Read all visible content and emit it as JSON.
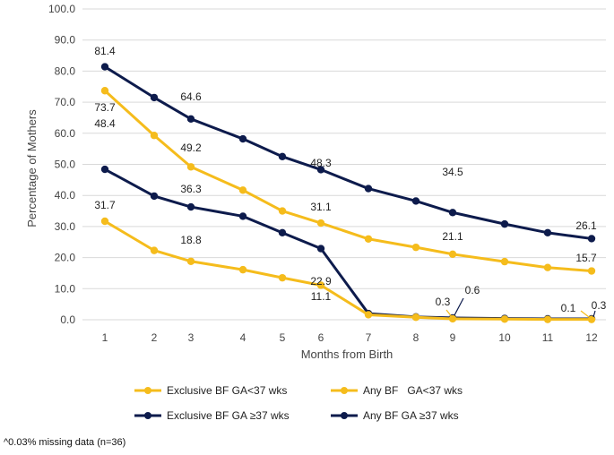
{
  "chart_data": {
    "type": "line",
    "title": "",
    "xlabel": "Months from Birth",
    "ylabel": "Percentage of Mothers",
    "ylim": [
      0,
      100
    ],
    "yticks": [
      "0.0",
      "10.0",
      "20.0",
      "30.0",
      "40.0",
      "50.0",
      "60.0",
      "70.0",
      "80.0",
      "90.0",
      "100.0"
    ],
    "x": [
      1,
      2,
      3,
      4,
      5,
      6,
      7,
      8,
      9,
      10,
      11,
      12
    ],
    "series": [
      {
        "name": "Any BF GA ≥37 wks",
        "color": "#0d1b4c",
        "values": [
          81.4,
          71.5,
          64.6,
          58.2,
          52.5,
          48.3,
          42.2,
          38.2,
          34.5,
          30.8,
          28.0,
          26.1
        ]
      },
      {
        "name": "Any BF GA<37 wks",
        "color": "#f5bc1c",
        "values": [
          73.7,
          59.3,
          49.2,
          41.7,
          35.0,
          31.1,
          26.0,
          23.3,
          21.1,
          18.7,
          16.8,
          15.7
        ]
      },
      {
        "name": "Exclusive BF GA ≥37 wks",
        "color": "#0d1b4c",
        "values": [
          48.4,
          39.8,
          36.3,
          33.3,
          28.0,
          22.9,
          2.0,
          0.9,
          0.6,
          0.4,
          0.3,
          0.3
        ]
      },
      {
        "name": "Exclusive BF GA<37 wks",
        "color": "#f5bc1c",
        "values": [
          31.7,
          22.3,
          18.8,
          16.1,
          13.5,
          11.1,
          1.6,
          0.8,
          0.3,
          0.2,
          0.1,
          0.1
        ]
      }
    ],
    "data_labels": [
      {
        "text": "81.4"
      },
      {
        "text": "73.7"
      },
      {
        "text": "64.6"
      },
      {
        "text": "48.4"
      },
      {
        "text": "49.2"
      },
      {
        "text": "36.3"
      },
      {
        "text": "31.7"
      },
      {
        "text": "18.8"
      },
      {
        "text": "48.3"
      },
      {
        "text": "31.1"
      },
      {
        "text": "22.9"
      },
      {
        "text": "11.1"
      },
      {
        "text": "34.5"
      },
      {
        "text": "21.1"
      },
      {
        "text": "0.3"
      },
      {
        "text": "0.6"
      },
      {
        "text": "26.1"
      },
      {
        "text": "15.7"
      },
      {
        "text": "0.1"
      },
      {
        "text": "0.3"
      }
    ],
    "legend": [
      {
        "text": "Exclusive BF GA<37 wks",
        "color": "#f5bc1c"
      },
      {
        "text": "Any BF   GA<37 wks",
        "color": "#f5bc1c"
      },
      {
        "text": "Exclusive BF GA ≥37 wks",
        "color": "#0d1b4c"
      },
      {
        "text": "Any BF GA ≥37 wks",
        "color": "#0d1b4c"
      }
    ],
    "footnote": "^0.03% missing data (n=36)"
  }
}
